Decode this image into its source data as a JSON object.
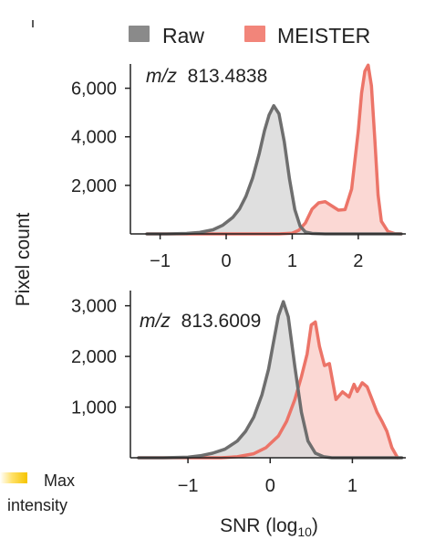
{
  "legend": {
    "entries": [
      {
        "label": "Raw",
        "color": "#8a8a8a"
      },
      {
        "label": "MEISTER",
        "color": "#f2857a"
      }
    ]
  },
  "colorbar": {
    "max_label": "Max",
    "intensity_label": "intensity",
    "gradient_colors": [
      "#ffffff",
      "#ffe066",
      "#f5c400"
    ]
  },
  "colors": {
    "raw_line": "#6e6e6e",
    "raw_fill": "#d9d9d9",
    "meister_line": "#ec7468",
    "meister_fill": "#fbd4cf"
  },
  "chart_data": [
    {
      "type": "area",
      "annotation_prefix": "m/z",
      "annotation_value": "813.4838",
      "ylabel": "Pixel count",
      "xlabel": "",
      "xlim": [
        -1.45,
        2.72
      ],
      "ylim": [
        0,
        7000
      ],
      "xticks": [
        -1,
        0,
        1,
        2
      ],
      "xtick_labels": [
        "−1",
        "0",
        "1",
        "2"
      ],
      "yticks": [
        2000,
        4000,
        6000
      ],
      "ytick_labels": [
        "2,000",
        "4,000",
        "6,000"
      ],
      "grid": false,
      "series": [
        {
          "name": "Raw",
          "x": [
            -1.2,
            -0.9,
            -0.6,
            -0.4,
            -0.2,
            -0.05,
            0.1,
            0.2,
            0.3,
            0.4,
            0.5,
            0.58,
            0.65,
            0.72,
            0.8,
            0.88,
            0.96,
            1.04,
            1.12,
            1.2,
            1.3,
            1.5,
            1.8,
            2.2,
            2.65
          ],
          "y": [
            0,
            0,
            20,
            60,
            170,
            360,
            680,
            1020,
            1550,
            2300,
            3300,
            4250,
            4900,
            5280,
            4950,
            3800,
            2250,
            1000,
            320,
            80,
            20,
            0,
            0,
            0,
            0
          ]
        },
        {
          "name": "MEISTER",
          "x": [
            -1.2,
            0.8,
            1.0,
            1.1,
            1.2,
            1.3,
            1.4,
            1.5,
            1.6,
            1.7,
            1.8,
            1.9,
            2.0,
            2.05,
            2.1,
            2.15,
            2.2,
            2.25,
            2.3,
            2.35,
            2.45,
            2.55,
            2.65
          ],
          "y": [
            0,
            0,
            30,
            150,
            450,
            1020,
            1280,
            1330,
            1150,
            980,
            1000,
            1850,
            4250,
            5800,
            6700,
            6950,
            6100,
            3900,
            1600,
            520,
            100,
            10,
            0
          ],
          "hatched": false
        }
      ]
    },
    {
      "type": "area",
      "annotation_prefix": "m/z",
      "annotation_value": "813.6009",
      "ylabel": "Pixel count",
      "xlabel": "SNR (log10)",
      "xlabel_main": "SNR (log",
      "xlabel_sub": "10",
      "xlabel_close": ")",
      "xlim": [
        -1.7,
        1.65
      ],
      "ylim": [
        0,
        3300
      ],
      "xticks": [
        -1,
        0,
        1
      ],
      "xtick_labels": [
        "−1",
        "0",
        "1"
      ],
      "yticks": [
        1000,
        2000,
        3000
      ],
      "ytick_labels": [
        "1,000",
        "2,000",
        "3,000"
      ],
      "grid": false,
      "series": [
        {
          "name": "Raw",
          "x": [
            -1.6,
            -1.3,
            -1.0,
            -0.85,
            -0.7,
            -0.55,
            -0.4,
            -0.3,
            -0.2,
            -0.1,
            -0.02,
            0.04,
            0.1,
            0.16,
            0.22,
            0.3,
            0.38,
            0.46,
            0.55,
            0.65,
            0.75,
            0.9,
            1.1,
            1.6
          ],
          "y": [
            0,
            0,
            10,
            40,
            90,
            170,
            330,
            520,
            800,
            1240,
            1750,
            2280,
            2800,
            3080,
            2780,
            1800,
            900,
            330,
            90,
            20,
            0,
            0,
            0,
            0
          ]
        },
        {
          "name": "MEISTER",
          "x": [
            -1.6,
            -0.6,
            -0.4,
            -0.2,
            -0.05,
            0.1,
            0.2,
            0.3,
            0.38,
            0.45,
            0.5,
            0.55,
            0.6,
            0.66,
            0.72,
            0.8,
            0.88,
            0.96,
            1.02,
            1.06,
            1.12,
            1.18,
            1.24,
            1.3,
            1.36,
            1.42,
            1.48,
            1.55
          ],
          "y": [
            0,
            0,
            20,
            80,
            200,
            430,
            720,
            1150,
            1600,
            2050,
            2620,
            2680,
            2200,
            1820,
            1860,
            1150,
            1300,
            1200,
            1450,
            1310,
            1480,
            1400,
            1150,
            900,
            720,
            520,
            200,
            0
          ]
        }
      ]
    }
  ]
}
